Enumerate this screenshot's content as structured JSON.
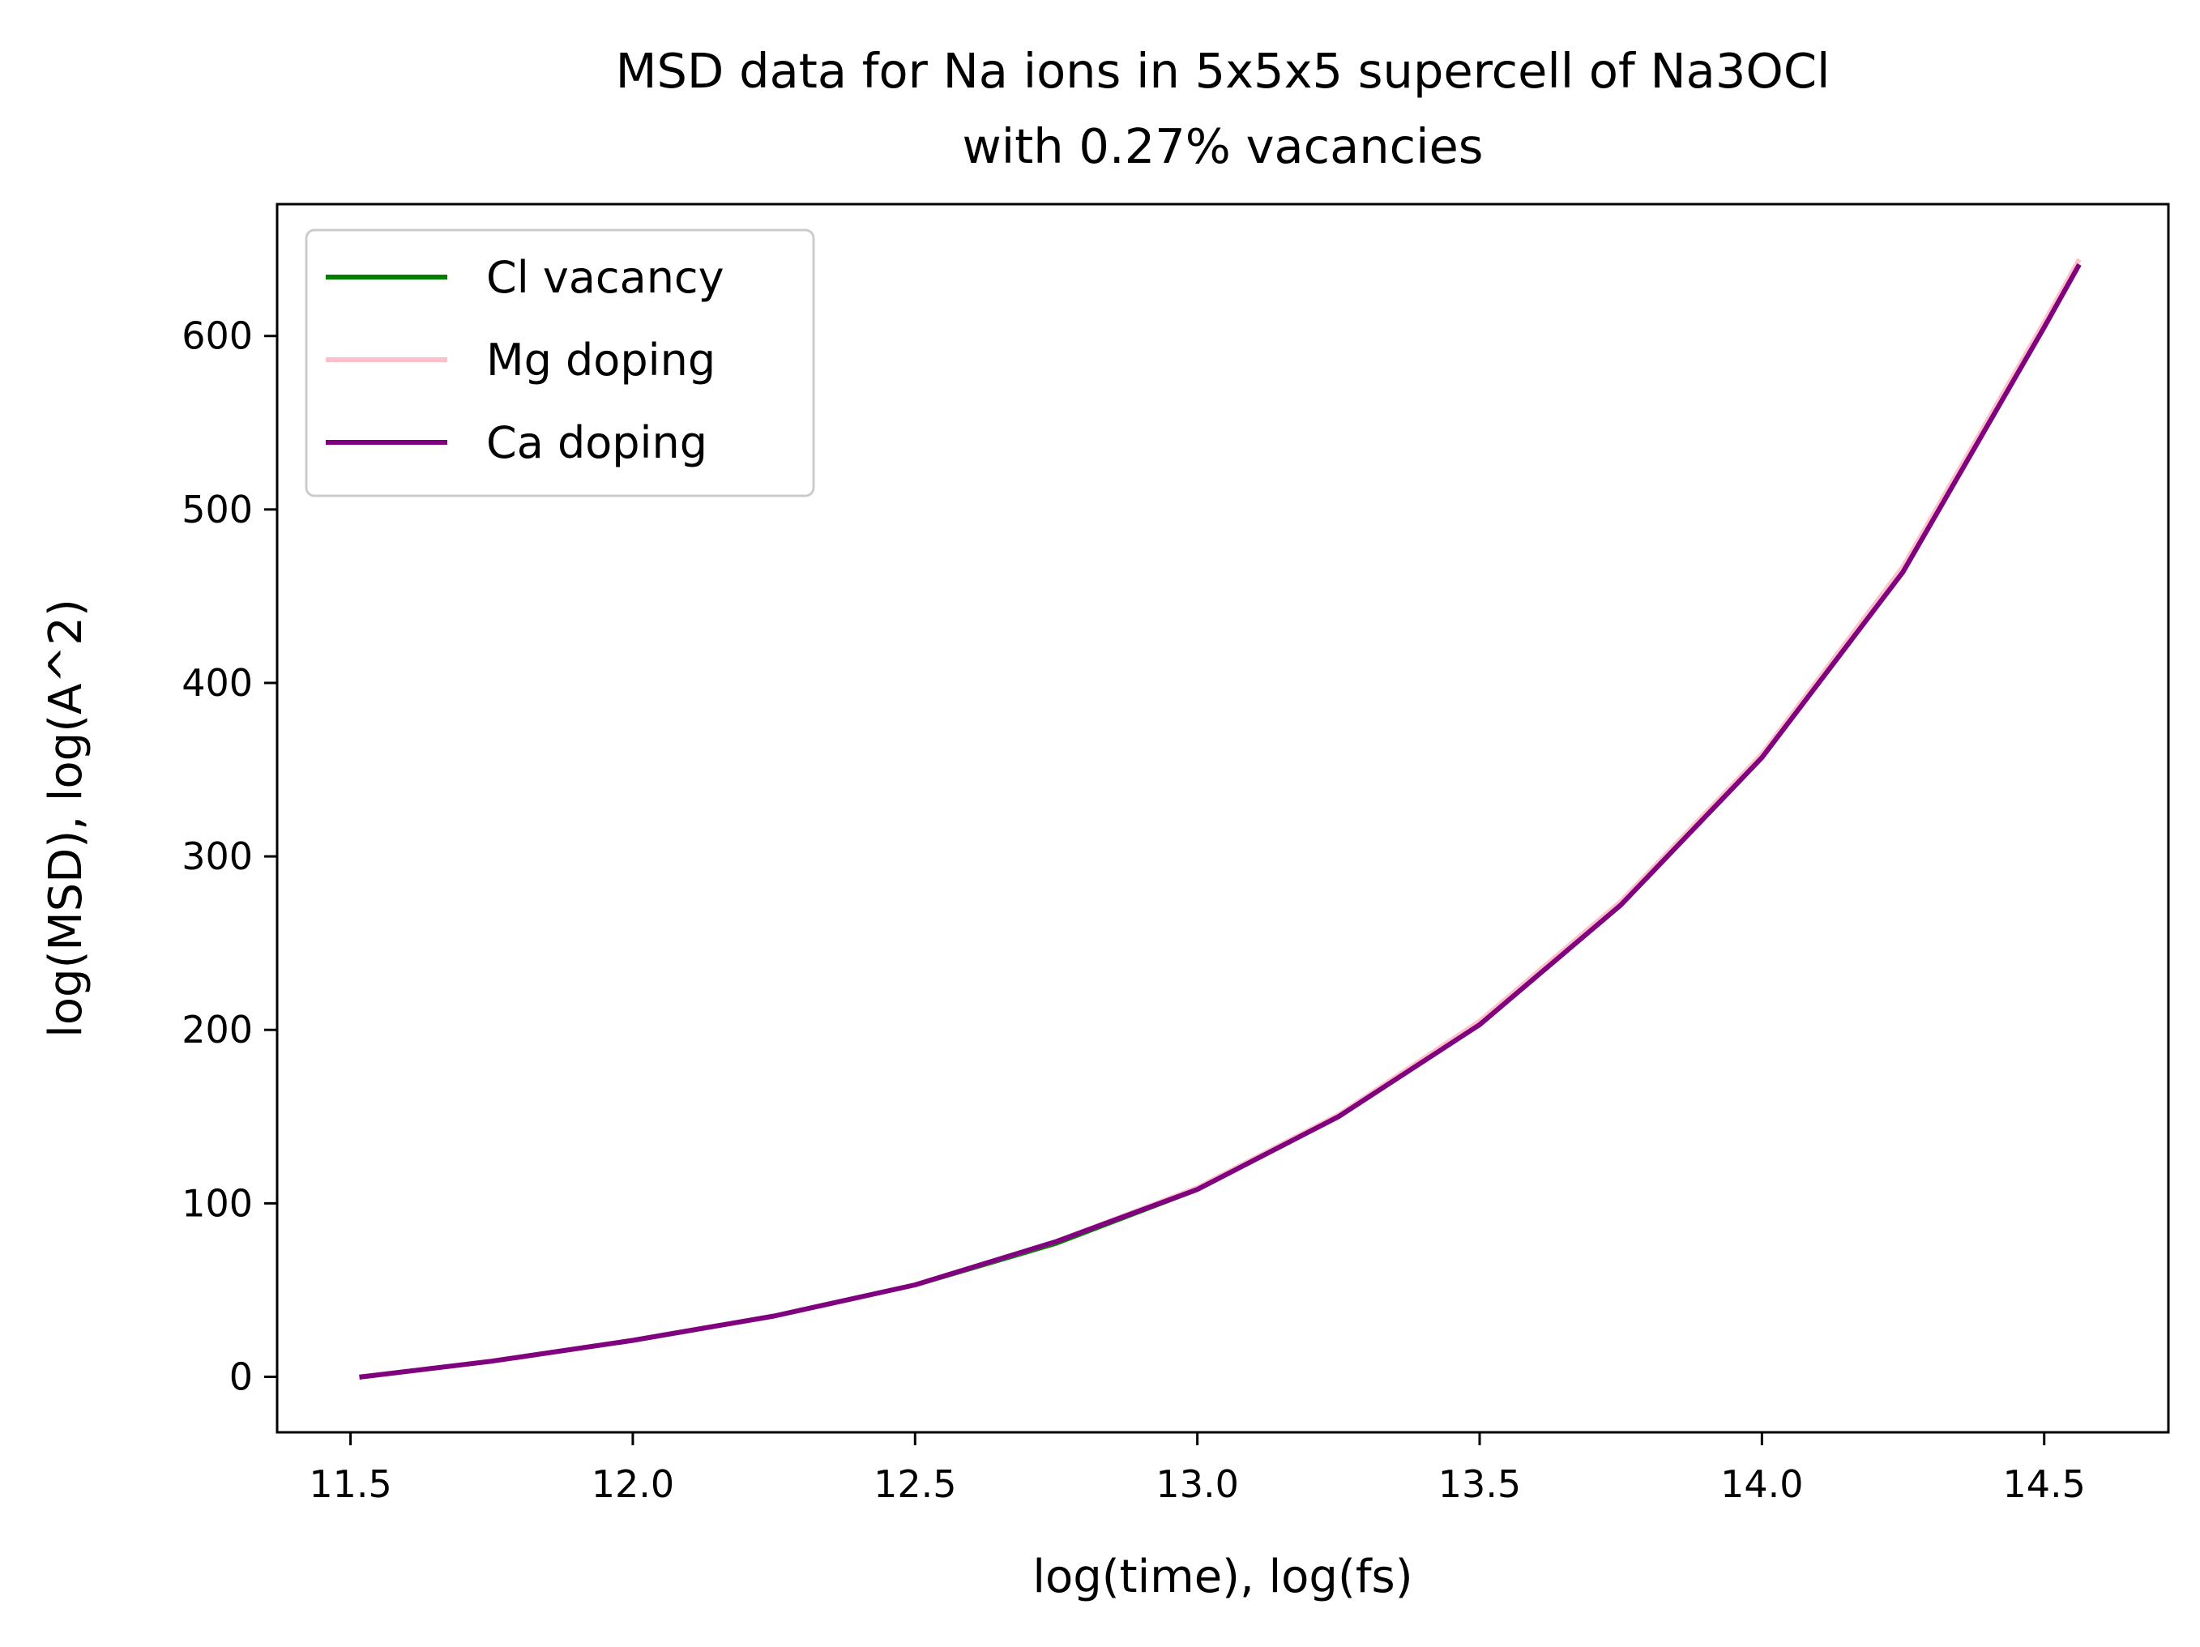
{
  "chart_data": {
    "type": "line",
    "title": [
      "MSD data for Na ions in 5x5x5 supercell of Na3OCl",
      "with 0.27% vacancies"
    ],
    "xlabel": "log(time), log(fs)",
    "ylabel": "log(MSD), log(A^2)",
    "xlim": [
      11.37,
      14.72
    ],
    "ylim": [
      -32,
      676
    ],
    "xticks": [
      11.5,
      12.0,
      12.5,
      13.0,
      13.5,
      14.0,
      14.5
    ],
    "xtick_labels": [
      "11.5",
      "12.0",
      "12.5",
      "13.0",
      "13.5",
      "14.0",
      "14.5"
    ],
    "yticks": [
      0,
      100,
      200,
      300,
      400,
      500,
      600
    ],
    "ytick_labels": [
      "0",
      "100",
      "200",
      "300",
      "400",
      "500",
      "600"
    ],
    "grid": false,
    "legend_position": "top-left",
    "series": [
      {
        "name": "Cl vacancy",
        "color": "#007f00",
        "x": [
          11.52,
          11.75,
          12.0,
          12.25,
          12.5,
          12.75,
          13.0,
          13.25,
          13.5,
          13.75,
          14.0,
          14.25,
          14.5,
          14.56
        ],
        "y": [
          0,
          9,
          21,
          35,
          53,
          77,
          108,
          150,
          203,
          272,
          357,
          464,
          605,
          640
        ]
      },
      {
        "name": "Mg doping",
        "color": "#ffc0cb",
        "x": [
          11.52,
          11.75,
          12.0,
          12.25,
          12.5,
          12.75,
          13.0,
          13.25,
          13.5,
          13.75,
          14.0,
          14.25,
          14.5,
          14.56
        ],
        "y": [
          0,
          9,
          21,
          35,
          53,
          78,
          109,
          151,
          205,
          274,
          359,
          467,
          608,
          643
        ]
      },
      {
        "name": "Ca doping",
        "color": "#800080",
        "x": [
          11.52,
          11.75,
          12.0,
          12.25,
          12.5,
          12.75,
          13.0,
          13.25,
          13.5,
          13.75,
          14.0,
          14.25,
          14.5,
          14.56
        ],
        "y": [
          0,
          9,
          21,
          35,
          53,
          78,
          108,
          150,
          203,
          272,
          357,
          464,
          605,
          640
        ]
      }
    ]
  }
}
